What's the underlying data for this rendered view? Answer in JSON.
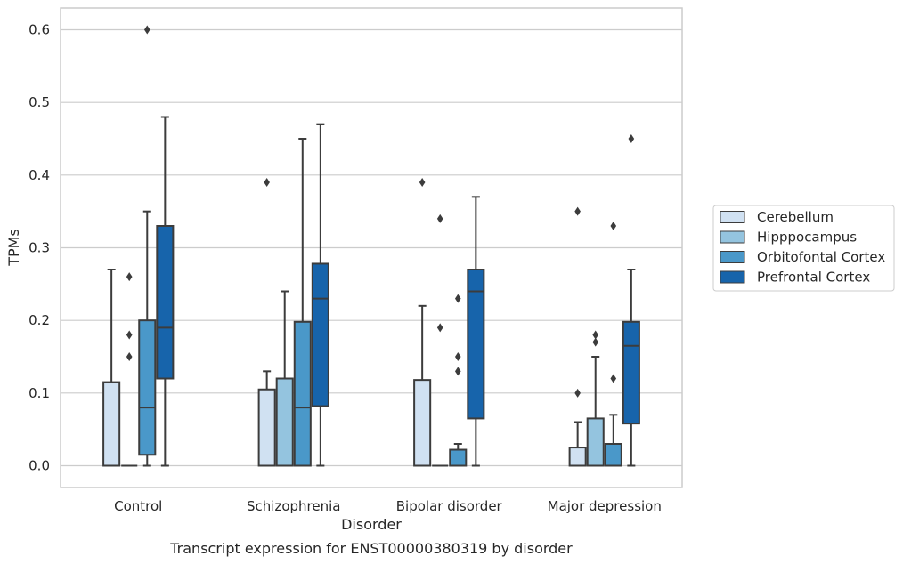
{
  "chart_data": {
    "type": "boxplot",
    "xlabel": "Disorder",
    "ylabel": "TPMs",
    "caption": "Transcript expression for ENST00000380319 by disorder",
    "ylim": [
      -0.03,
      0.63
    ],
    "yticks": [
      0.0,
      0.1,
      0.2,
      0.3,
      0.4,
      0.5,
      0.6
    ],
    "ytick_labels": [
      "0.0",
      "0.1",
      "0.2",
      "0.3",
      "0.4",
      "0.5",
      "0.6"
    ],
    "grid": "horizontal",
    "legend_position": "right",
    "categories": [
      "Control",
      "Schizophrenia",
      "Bipolar disorder",
      "Major depression"
    ],
    "series": [
      {
        "name": "Cerebellum",
        "color": "#d0e1f2",
        "boxes": [
          {
            "min": 0.0,
            "q1": 0.0,
            "median": 0.0,
            "q3": 0.115,
            "max": 0.27,
            "outliers": []
          },
          {
            "min": 0.0,
            "q1": 0.0,
            "median": 0.0,
            "q3": 0.105,
            "max": 0.13,
            "outliers": [
              0.39
            ]
          },
          {
            "min": 0.0,
            "q1": 0.0,
            "median": 0.0,
            "q3": 0.118,
            "max": 0.22,
            "outliers": [
              0.39
            ]
          },
          {
            "min": 0.0,
            "q1": 0.0,
            "median": 0.0,
            "q3": 0.025,
            "max": 0.06,
            "outliers": [
              0.1,
              0.35
            ]
          }
        ]
      },
      {
        "name": "Hipppocampus",
        "color": "#94c4df",
        "boxes": [
          {
            "min": 0.0,
            "q1": 0.0,
            "median": 0.0,
            "q3": 0.0,
            "max": 0.0,
            "outliers": [
              0.15,
              0.18,
              0.26
            ]
          },
          {
            "min": 0.0,
            "q1": 0.0,
            "median": 0.0,
            "q3": 0.12,
            "max": 0.24,
            "outliers": []
          },
          {
            "min": 0.0,
            "q1": 0.0,
            "median": 0.0,
            "q3": 0.0,
            "max": 0.0,
            "outliers": [
              0.19,
              0.34
            ]
          },
          {
            "min": 0.0,
            "q1": 0.0,
            "median": 0.0,
            "q3": 0.065,
            "max": 0.15,
            "outliers": [
              0.17,
              0.18
            ]
          }
        ]
      },
      {
        "name": "Orbitofontal Cortex",
        "color": "#4a98c9",
        "boxes": [
          {
            "min": 0.0,
            "q1": 0.015,
            "median": 0.08,
            "q3": 0.2,
            "max": 0.35,
            "outliers": [
              0.6
            ]
          },
          {
            "min": 0.0,
            "q1": 0.0,
            "median": 0.08,
            "q3": 0.198,
            "max": 0.45,
            "outliers": []
          },
          {
            "min": 0.0,
            "q1": 0.0,
            "median": 0.0,
            "q3": 0.022,
            "max": 0.03,
            "outliers": [
              0.13,
              0.15,
              0.23
            ]
          },
          {
            "min": 0.0,
            "q1": 0.0,
            "median": 0.0,
            "q3": 0.03,
            "max": 0.07,
            "outliers": [
              0.12,
              0.33
            ]
          }
        ]
      },
      {
        "name": "Prefrontal Cortex",
        "color": "#1764ab",
        "boxes": [
          {
            "min": 0.0,
            "q1": 0.12,
            "median": 0.19,
            "q3": 0.33,
            "max": 0.48,
            "outliers": []
          },
          {
            "min": 0.0,
            "q1": 0.082,
            "median": 0.23,
            "q3": 0.278,
            "max": 0.47,
            "outliers": []
          },
          {
            "min": 0.0,
            "q1": 0.065,
            "median": 0.24,
            "q3": 0.27,
            "max": 0.37,
            "outliers": []
          },
          {
            "min": 0.0,
            "q1": 0.058,
            "median": 0.165,
            "q3": 0.198,
            "max": 0.27,
            "outliers": [
              0.45
            ]
          }
        ]
      }
    ]
  }
}
